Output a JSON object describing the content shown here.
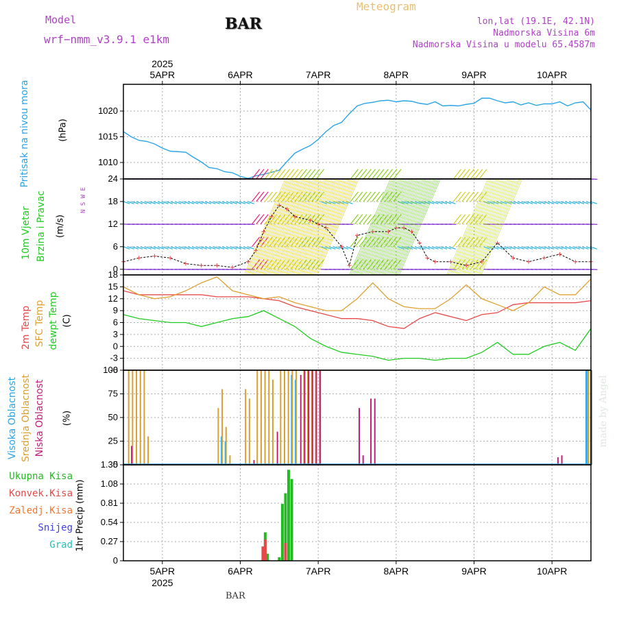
{
  "header": {
    "model_label": "Model",
    "model_name": "wrf−nmm_v3.9.1  e1km",
    "title": "BAR",
    "product": "Meteogram",
    "coords": "lon,lat (19.1E, 42.1N)",
    "elev": "Nadmorska Visina 6m",
    "elev_model": "Nadmorska Visina u modelu 65.4587m"
  },
  "footer": {
    "station": "BAR",
    "watermark": "made by Angel"
  },
  "time_axis": {
    "year": "2025",
    "days": [
      "5APR",
      "6APR",
      "7APR",
      "8APR",
      "9APR",
      "10APR"
    ],
    "day_positions": [
      0.5,
      1.5,
      2.5,
      3.5,
      4.5,
      5.5
    ]
  },
  "colors": {
    "pressure": "#2aa4e8",
    "t2m": "#e84848",
    "sfc": "#e0a030",
    "dewpt": "#20cc20",
    "high_cloud": "#2aa4e8",
    "mid_cloud": "#d8a030",
    "low_cloud": "#c0207a",
    "total_rain": "#22bb22",
    "conv_rain": "#e84848",
    "frozen_rain": "#f07830",
    "snow": "#4040e0",
    "hail": "#20c0c0",
    "wind_calm": "#8030d0",
    "wind_mid": "#20b0e0",
    "wind_high": "#d0d020"
  },
  "panel_labels": {
    "pressure": {
      "name": "Pritisak na nivou mora",
      "unit": "(hPa)"
    },
    "wind": {
      "name1": "10m Vjetar",
      "name2": "Brzina i Pravac",
      "unit": "(m/s)",
      "compass": "N  S  W  E"
    },
    "temp": {
      "t2m": "2m Temp",
      "sfc": "SFC Temp",
      "dewpt": "dewpt Temp",
      "unit": "(C)"
    },
    "cloud": {
      "high": "Visoka Oblacnost",
      "mid": "Srednja Oblacnost",
      "low": "Niska Oblacnost",
      "unit": "(%)"
    },
    "precip": {
      "total": "Ukupna Kisa",
      "conv": "Konvek.Kisa",
      "frozen": "Zaledj.Kisa",
      "snow": "Snijeg",
      "hail": "Grad",
      "unit": "1hr Precip (mm)"
    }
  },
  "chart_data": [
    {
      "type": "line",
      "name": "pressure",
      "ylabel": "(hPa)",
      "ylim": [
        1006.8,
        1025.2
      ],
      "yticks": [
        1010,
        1015,
        1020
      ],
      "x": [
        0.0,
        0.1,
        0.2,
        0.3,
        0.4,
        0.5,
        0.6,
        0.7,
        0.8,
        0.9,
        1.0,
        1.1,
        1.2,
        1.3,
        1.4,
        1.5,
        1.6,
        1.7,
        1.8,
        1.9,
        2.0,
        2.1,
        2.2,
        2.3,
        2.4,
        2.5,
        2.6,
        2.7,
        2.8,
        2.9,
        3.0,
        3.1,
        3.2,
        3.3,
        3.4,
        3.5,
        3.6,
        3.7,
        3.8,
        3.9,
        4.0,
        4.1,
        4.2,
        4.3,
        4.4,
        4.5,
        4.6,
        4.7,
        4.8,
        4.9,
        5.0,
        5.1,
        5.2,
        5.3,
        5.4,
        5.5,
        5.6,
        5.7,
        5.8,
        5.9,
        6.0
      ],
      "values": [
        1016.0,
        1015.0,
        1014.3,
        1014.1,
        1013.6,
        1012.8,
        1012.2,
        1012.1,
        1012.0,
        1011.0,
        1010.1,
        1009.0,
        1008.8,
        1008.2,
        1008.0,
        1007.3,
        1006.9,
        1007.4,
        1007.7,
        1008.1,
        1008.5,
        1010.2,
        1011.8,
        1012.6,
        1013.3,
        1014.5,
        1016.0,
        1017.2,
        1017.8,
        1019.5,
        1021.0,
        1021.5,
        1021.7,
        1022.0,
        1022.1,
        1021.8,
        1022.0,
        1021.9,
        1021.5,
        1021.3,
        1021.8,
        1021.0,
        1021.1,
        1021.0,
        1021.3,
        1021.5,
        1022.5,
        1022.5,
        1022.0,
        1021.6,
        1021.8,
        1021.2,
        1021.6,
        1021.1,
        1021.4,
        1021.4,
        1021.8,
        1021.0,
        1021.6,
        1021.8,
        1020.2
      ]
    },
    {
      "type": "line",
      "name": "wind",
      "ylabel": "(m/s)",
      "ylim": [
        -1.5,
        24
      ],
      "yticks": [
        0,
        6,
        12,
        18,
        24
      ],
      "arrow_rows": [
        0,
        6,
        12,
        18,
        24
      ],
      "x": [
        0.0,
        0.2,
        0.4,
        0.6,
        0.8,
        1.0,
        1.2,
        1.4,
        1.6,
        1.7,
        1.8,
        1.9,
        2.0,
        2.1,
        2.2,
        2.4,
        2.5,
        2.6,
        2.8,
        2.9,
        3.0,
        3.2,
        3.4,
        3.5,
        3.6,
        3.7,
        3.8,
        3.9,
        4.0,
        4.2,
        4.4,
        4.6,
        4.8,
        5.0,
        5.2,
        5.4,
        5.6,
        5.8,
        6.0
      ],
      "values": [
        2,
        3,
        3.5,
        3,
        1.5,
        1,
        1,
        0.5,
        2,
        5,
        10,
        14,
        17,
        16,
        14,
        13,
        12,
        11,
        6,
        1,
        9,
        10,
        10,
        11,
        11,
        10,
        7,
        3,
        2,
        2,
        1,
        2,
        7,
        3,
        2,
        3,
        4,
        2,
        2
      ]
    },
    {
      "type": "line",
      "name": "temperature",
      "ylabel": "(C)",
      "ylim": [
        -6,
        18
      ],
      "yticks": [
        -6,
        -3,
        0,
        3,
        6,
        9,
        12,
        15,
        18
      ],
      "x": [
        0.0,
        0.2,
        0.4,
        0.6,
        0.8,
        1.0,
        1.2,
        1.4,
        1.6,
        1.8,
        2.0,
        2.2,
        2.4,
        2.6,
        2.8,
        3.0,
        3.2,
        3.4,
        3.6,
        3.8,
        4.0,
        4.2,
        4.4,
        4.6,
        4.8,
        5.0,
        5.2,
        5.4,
        5.6,
        5.8,
        6.0
      ],
      "series": [
        {
          "name": "2m Temp",
          "values": [
            14,
            13,
            13,
            13,
            13,
            13,
            12.5,
            12.5,
            12.5,
            12,
            11.5,
            10,
            9,
            8,
            7,
            7,
            6.5,
            5,
            4.5,
            7,
            8.5,
            7.5,
            6.5,
            8,
            8.5,
            10.5,
            11,
            11,
            11,
            11,
            11.5
          ]
        },
        {
          "name": "SFC Temp",
          "values": [
            15,
            13,
            12,
            12.5,
            14,
            16,
            17.5,
            14,
            13,
            12,
            12.5,
            11,
            10,
            9,
            9,
            12,
            16,
            12,
            10,
            9.5,
            9.5,
            12,
            15.5,
            12,
            10.5,
            9,
            11,
            15,
            13,
            13,
            17
          ]
        },
        {
          "name": "dewpt Temp",
          "values": [
            8,
            7,
            6.5,
            6,
            6,
            5,
            6,
            7,
            7.5,
            9,
            7,
            5,
            2,
            0,
            -1.5,
            -2,
            -2.5,
            -3.5,
            -3,
            -3,
            -3.5,
            -3,
            -3,
            -1.5,
            1,
            -2,
            -2,
            0,
            1,
            -1,
            4.5
          ]
        }
      ]
    },
    {
      "type": "bar",
      "name": "cloud",
      "ylabel": "(%)",
      "ylim": [
        0,
        100
      ],
      "yticks": [
        0,
        25,
        50,
        75,
        100
      ],
      "series": [
        {
          "name": "Visoka Oblacnost",
          "x": [
            1.25,
            1.3,
            2.15,
            2.2,
            5.93,
            5.95,
            6.0
          ],
          "values": [
            30,
            25,
            95,
            90,
            100,
            100,
            100
          ]
        },
        {
          "name": "Srednja Oblacnost",
          "x": [
            0.05,
            0.1,
            0.15,
            0.2,
            0.25,
            0.3,
            1.2,
            1.25,
            1.3,
            1.35,
            1.55,
            1.6,
            1.7,
            1.75,
            1.8,
            1.85,
            1.9,
            2.0,
            2.05,
            2.1,
            2.15,
            2.2,
            2.3,
            2.35,
            2.4,
            2.45,
            2.5,
            5.95,
            5.98
          ],
          "values": [
            100,
            100,
            100,
            100,
            100,
            30,
            60,
            80,
            40,
            10,
            80,
            70,
            100,
            100,
            100,
            100,
            90,
            100,
            100,
            100,
            100,
            100,
            100,
            100,
            100,
            100,
            100,
            100,
            100
          ]
        },
        {
          "name": "Niska Oblacnost",
          "x": [
            0.08,
            1.65,
            1.95,
            2.25,
            2.3,
            2.35,
            2.4,
            2.45,
            2.5,
            3.0,
            3.05,
            3.15,
            3.2,
            5.55,
            5.6
          ],
          "values": [
            20,
            5,
            35,
            95,
            100,
            100,
            100,
            100,
            100,
            60,
            10,
            70,
            70,
            8,
            10
          ]
        }
      ]
    },
    {
      "type": "bar",
      "name": "precipitation",
      "ylabel": "1hr Precip (mm)",
      "ylim": [
        0,
        1.35
      ],
      "yticks": [
        0,
        0.27,
        0.54,
        0.81,
        1.08,
        1.35
      ],
      "series": [
        {
          "name": "Ukupna Kisa",
          "x": [
            1.79,
            1.82,
            1.85,
            2.0,
            2.04,
            2.08,
            2.12,
            2.16
          ],
          "values": [
            0.2,
            0.4,
            0.1,
            0.05,
            0.8,
            0.95,
            1.28,
            1.15
          ]
        },
        {
          "name": "Konvek.Kisa",
          "x": [
            1.79,
            1.82,
            2.08
          ],
          "values": [
            0.2,
            0.3,
            0.25
          ]
        },
        {
          "name": "Zaledj.Kisa",
          "x": [],
          "values": []
        },
        {
          "name": "Snijeg",
          "x": [],
          "values": []
        },
        {
          "name": "Grad",
          "x": [],
          "values": []
        }
      ]
    }
  ]
}
